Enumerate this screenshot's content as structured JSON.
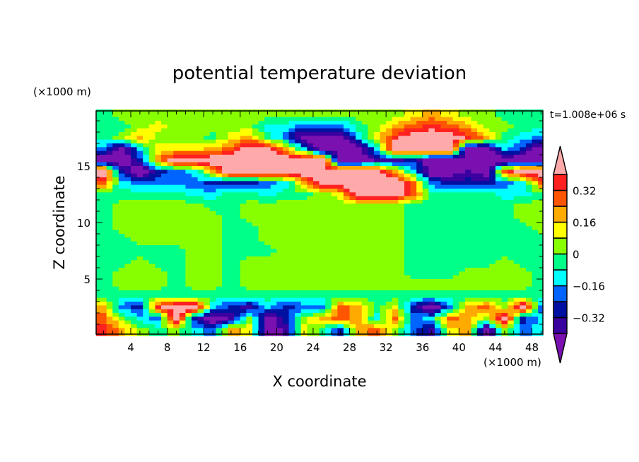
{
  "chart_data": {
    "type": "heatmap",
    "title": "potential temperature deviation",
    "xlabel": "X coordinate",
    "ylabel": "Z coordinate",
    "x_unit_label": "(×1000 m)",
    "y_unit_label": "(×1000 m)",
    "time_label": "t=1.008e+06 s",
    "xlim": [
      0.2,
      49.2
    ],
    "ylim": [
      0,
      20
    ],
    "x_ticks": [
      4,
      8,
      12,
      16,
      20,
      24,
      28,
      32,
      36,
      40,
      44,
      48
    ],
    "y_ticks": [
      5,
      10,
      15
    ],
    "colorbar": {
      "levels": [
        -0.4,
        -0.32,
        -0.24,
        -0.16,
        -0.08,
        0,
        0.08,
        0.16,
        0.24,
        0.32,
        0.4
      ],
      "tick_labels": [
        "0.32",
        "0.16",
        "0",
        "−0.16",
        "−0.32"
      ],
      "tick_values": [
        0.32,
        0.16,
        0,
        -0.16,
        -0.32
      ],
      "colors": [
        "#7a10b0",
        "#3a00a0",
        "#0010a0",
        "#0064ff",
        "#00ffff",
        "#00ff88",
        "#88ff00",
        "#ffff00",
        "#ffaa00",
        "#ff5500",
        "#ff2020",
        "#ffaaaa"
      ],
      "extend": "both"
    },
    "grid_x_centers_km": [
      1,
      3,
      5,
      7,
      9,
      11,
      13,
      15,
      17,
      19,
      21,
      23,
      25,
      27,
      29,
      31,
      33,
      35,
      37,
      39,
      41,
      43,
      45,
      47,
      49
    ],
    "grid_z_centers_km_top_to_bottom": [
      19.5,
      18.5,
      17.5,
      16.5,
      15.5,
      14.5,
      13.5,
      12.5,
      11.5,
      10.5,
      9.5,
      8.5,
      7.5,
      6.5,
      5.5,
      4.5,
      3.5,
      2.5,
      1.5,
      0.5
    ],
    "values": [
      [
        -0.04,
        0.04,
        0.04,
        0.04,
        0.04,
        0.04,
        0.04,
        0.04,
        0.04,
        0.04,
        0.04,
        0.04,
        0.04,
        0.04,
        0.04,
        0.04,
        0.04,
        0.12,
        0.2,
        0.12,
        0.04,
        0.04,
        -0.04,
        -0.04,
        -0.04
      ],
      [
        -0.04,
        -0.04,
        0.04,
        0.12,
        0.04,
        0.04,
        0.04,
        0.04,
        0.04,
        -0.12,
        -0.12,
        -0.2,
        -0.2,
        -0.2,
        -0.04,
        0.04,
        0.2,
        0.28,
        0.36,
        0.28,
        0.2,
        0.04,
        0.04,
        -0.04,
        -0.04
      ],
      [
        -0.04,
        0.04,
        0.2,
        0.04,
        0.04,
        0.04,
        -0.04,
        0.12,
        0.2,
        -0.04,
        -0.2,
        -0.5,
        -0.5,
        -0.5,
        -0.12,
        0.12,
        0.36,
        0.5,
        0.5,
        0.5,
        0.36,
        0.2,
        -0.04,
        -0.12,
        -0.2
      ],
      [
        -0.2,
        -0.5,
        -0.12,
        0.12,
        0.12,
        0.12,
        0.2,
        0.28,
        0.5,
        0.5,
        0.2,
        -0.12,
        -0.5,
        -0.5,
        -0.5,
        -0.12,
        0.5,
        0.5,
        0.5,
        0.5,
        -0.5,
        -0.5,
        -0.12,
        -0.28,
        -0.5
      ],
      [
        -0.5,
        -0.5,
        -0.28,
        0.2,
        0.5,
        0.5,
        0.5,
        0.5,
        0.5,
        0.5,
        0.5,
        0.5,
        0.5,
        -0.5,
        -0.5,
        -0.36,
        -0.36,
        -0.28,
        -0.5,
        -0.5,
        -0.5,
        -0.5,
        -0.5,
        -0.5,
        -0.5
      ],
      [
        0.5,
        -0.28,
        -0.5,
        -0.28,
        -0.2,
        -0.12,
        0.2,
        0.5,
        0.5,
        0.5,
        0.5,
        0.5,
        0.5,
        0.5,
        0.5,
        0.5,
        0.2,
        -0.12,
        -0.5,
        -0.5,
        -0.36,
        -0.5,
        0.28,
        0.5,
        0.5
      ],
      [
        0.28,
        -0.12,
        -0.2,
        -0.2,
        -0.2,
        -0.2,
        -0.28,
        -0.28,
        -0.28,
        -0.2,
        -0.12,
        0.2,
        0.5,
        0.5,
        0.5,
        0.5,
        0.5,
        0.28,
        -0.2,
        -0.28,
        -0.28,
        -0.28,
        -0.2,
        -0.12,
        0.28
      ],
      [
        -0.04,
        -0.04,
        -0.04,
        -0.04,
        -0.04,
        -0.12,
        -0.12,
        -0.04,
        -0.04,
        -0.12,
        -0.04,
        -0.04,
        0.04,
        0.12,
        0.5,
        0.5,
        0.5,
        0.28,
        -0.04,
        -0.04,
        -0.04,
        -0.04,
        -0.12,
        -0.12,
        -0.04
      ],
      [
        -0.04,
        0.04,
        0.04,
        0.04,
        0.04,
        0.04,
        -0.04,
        -0.04,
        0.04,
        0.04,
        0.04,
        0.04,
        0.04,
        0.04,
        0.04,
        0.04,
        0.04,
        -0.04,
        -0.04,
        -0.04,
        -0.04,
        -0.04,
        -0.04,
        0.04,
        0.04
      ],
      [
        -0.04,
        0.04,
        0.04,
        0.04,
        0.04,
        0.04,
        0.04,
        -0.04,
        0.04,
        0.04,
        0.04,
        0.04,
        0.04,
        0.04,
        0.04,
        0.04,
        0.04,
        -0.04,
        -0.04,
        -0.04,
        -0.04,
        -0.04,
        -0.04,
        0.04,
        0.04
      ],
      [
        -0.04,
        0.04,
        0.04,
        0.04,
        0.04,
        0.04,
        0.04,
        -0.04,
        -0.04,
        0.04,
        0.04,
        0.04,
        0.04,
        0.04,
        0.04,
        0.04,
        0.04,
        -0.04,
        -0.04,
        -0.04,
        -0.04,
        -0.04,
        -0.04,
        -0.04,
        0.04
      ],
      [
        -0.04,
        -0.04,
        0.04,
        0.04,
        0.04,
        0.04,
        0.04,
        -0.04,
        -0.04,
        0.04,
        0.04,
        0.04,
        0.04,
        0.04,
        0.04,
        0.04,
        0.04,
        -0.04,
        -0.04,
        -0.04,
        -0.04,
        -0.04,
        -0.04,
        -0.04,
        -0.04
      ],
      [
        -0.04,
        -0.04,
        -0.04,
        -0.04,
        -0.04,
        0.04,
        0.04,
        -0.04,
        -0.04,
        -0.04,
        0.04,
        0.04,
        0.04,
        0.04,
        0.04,
        0.04,
        0.04,
        -0.04,
        -0.04,
        -0.04,
        -0.04,
        -0.04,
        -0.04,
        -0.04,
        -0.04
      ],
      [
        -0.04,
        -0.04,
        0.04,
        -0.04,
        -0.04,
        0.04,
        0.04,
        -0.04,
        0.04,
        0.04,
        0.04,
        0.04,
        0.04,
        0.04,
        0.04,
        0.04,
        0.04,
        -0.04,
        -0.04,
        -0.04,
        -0.04,
        -0.04,
        0.04,
        -0.04,
        -0.04
      ],
      [
        -0.04,
        0.04,
        0.04,
        0.04,
        -0.04,
        0.04,
        0.04,
        -0.04,
        0.04,
        0.04,
        0.04,
        0.04,
        0.04,
        0.04,
        0.04,
        0.04,
        0.04,
        -0.04,
        -0.04,
        -0.04,
        0.04,
        0.04,
        0.04,
        0.04,
        -0.04
      ],
      [
        -0.04,
        0.04,
        0.04,
        0.04,
        -0.04,
        0.04,
        0.04,
        -0.04,
        0.04,
        0.04,
        0.04,
        0.04,
        0.04,
        0.04,
        0.04,
        0.04,
        0.04,
        0.04,
        0.04,
        0.04,
        0.04,
        0.04,
        0.04,
        0.04,
        -0.04
      ],
      [
        -0.04,
        -0.04,
        -0.04,
        -0.04,
        -0.04,
        -0.04,
        -0.04,
        -0.04,
        -0.04,
        -0.04,
        -0.04,
        -0.04,
        -0.04,
        -0.04,
        -0.04,
        -0.04,
        -0.04,
        -0.04,
        -0.04,
        -0.04,
        -0.04,
        -0.04,
        -0.04,
        -0.04,
        -0.04
      ],
      [
        0.2,
        -0.2,
        -0.28,
        0.36,
        0.5,
        0.5,
        -0.12,
        -0.28,
        -0.36,
        -0.12,
        -0.28,
        -0.2,
        -0.2,
        0.28,
        0.2,
        -0.04,
        0.12,
        -0.28,
        -0.5,
        -0.2,
        0.2,
        0.28,
        0.04,
        0.5,
        -0.2
      ],
      [
        0.28,
        0.04,
        -0.12,
        -0.2,
        0.5,
        -0.28,
        -0.5,
        -0.36,
        0.04,
        -0.5,
        -0.28,
        0.04,
        0.2,
        0.28,
        0.2,
        -0.12,
        0.28,
        -0.2,
        -0.12,
        0.28,
        0.2,
        0.04,
        0.5,
        -0.28,
        -0.12
      ],
      [
        0.36,
        0.2,
        0.04,
        -0.04,
        0.04,
        -0.12,
        -0.2,
        0.2,
        0.12,
        -0.5,
        -0.36,
        0.12,
        -0.04,
        -0.28,
        0.2,
        0.28,
        0.04,
        -0.2,
        -0.36,
        0.12,
        0.2,
        -0.5,
        0.04,
        -0.2,
        -0.12
      ]
    ]
  }
}
